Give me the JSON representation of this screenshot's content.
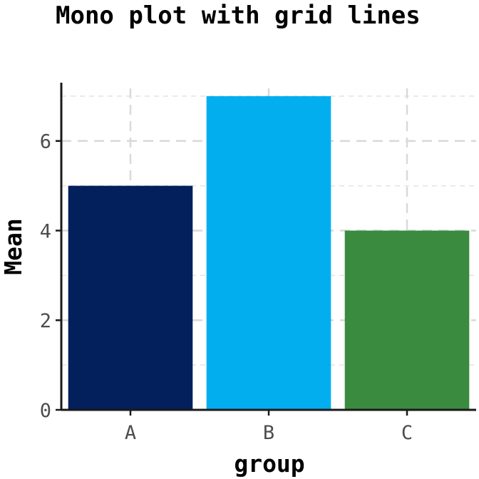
{
  "chart_data": {
    "type": "bar",
    "title": "Mono plot with grid lines",
    "xlabel": "group",
    "ylabel": "Mean",
    "categories": [
      "A",
      "B",
      "C"
    ],
    "values": [
      5,
      7,
      4
    ],
    "colors": [
      "#031f5c",
      "#03aeef",
      "#3a8a3f"
    ],
    "ylim": [
      0,
      7
    ],
    "yticks": [
      0,
      2,
      4,
      6
    ],
    "yticks_minor": [
      1,
      3,
      5,
      7
    ],
    "grid": true,
    "grid_style": "dashed",
    "legend": false
  }
}
